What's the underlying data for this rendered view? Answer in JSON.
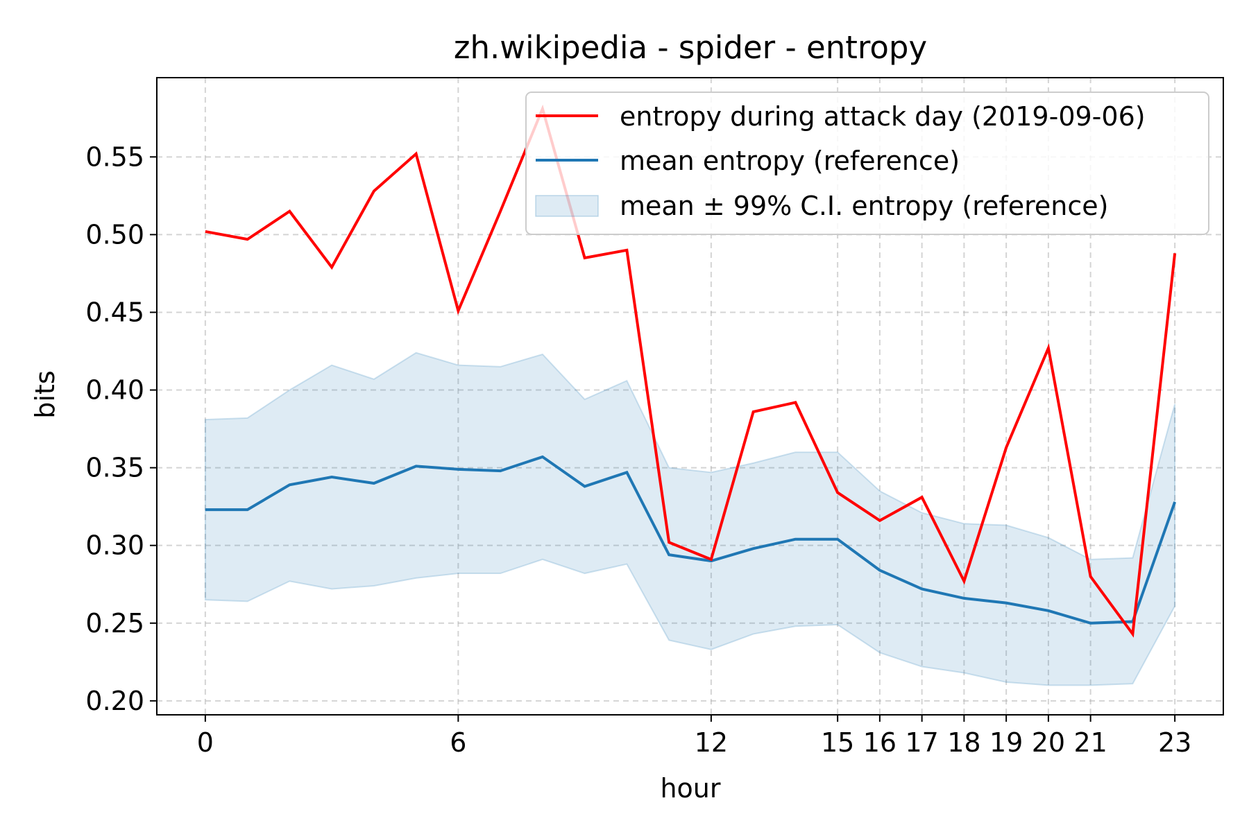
{
  "chart_data": {
    "type": "line",
    "title": "zh.wikipedia - spider - entropy",
    "xlabel": "hour",
    "ylabel": "bits",
    "xlim": [
      -1.15,
      24.15
    ],
    "ylim": [
      0.191,
      0.601
    ],
    "xticks": [
      0,
      6,
      12,
      15,
      16,
      17,
      18,
      19,
      20,
      21,
      23
    ],
    "yticks": [
      0.2,
      0.25,
      0.3,
      0.35,
      0.4,
      0.45,
      0.5,
      0.55
    ],
    "ytick_labels": [
      "0.20",
      "0.25",
      "0.30",
      "0.35",
      "0.40",
      "0.45",
      "0.50",
      "0.55"
    ],
    "grid": true,
    "legend_position": "upper right",
    "x": [
      0,
      1,
      2,
      3,
      4,
      5,
      6,
      7,
      8,
      9,
      10,
      11,
      12,
      13,
      14,
      15,
      16,
      17,
      18,
      19,
      20,
      21,
      22,
      23
    ],
    "series": [
      {
        "name": "entropy during attack day (2019-09-06)",
        "color": "#ff0000",
        "values": [
          0.502,
          0.497,
          0.515,
          0.479,
          0.528,
          0.552,
          0.451,
          0.515,
          0.581,
          0.485,
          0.49,
          0.302,
          0.291,
          0.386,
          0.392,
          0.334,
          0.316,
          0.331,
          0.277,
          0.363,
          0.427,
          0.28,
          0.243,
          0.488
        ]
      },
      {
        "name": "mean entropy (reference)",
        "color": "#1f77b4",
        "values": [
          0.323,
          0.323,
          0.339,
          0.344,
          0.34,
          0.351,
          0.349,
          0.348,
          0.357,
          0.338,
          0.347,
          0.294,
          0.29,
          0.298,
          0.304,
          0.304,
          0.284,
          0.272,
          0.266,
          0.263,
          0.258,
          0.25,
          0.251,
          0.328
        ]
      }
    ],
    "band": {
      "name": "mean ± 99% C.I. entropy (reference)",
      "color": "#1f77b4",
      "upper": [
        0.381,
        0.382,
        0.4,
        0.416,
        0.407,
        0.424,
        0.416,
        0.415,
        0.423,
        0.394,
        0.406,
        0.35,
        0.347,
        0.353,
        0.36,
        0.36,
        0.335,
        0.321,
        0.314,
        0.313,
        0.305,
        0.291,
        0.292,
        0.391
      ],
      "lower": [
        0.265,
        0.264,
        0.277,
        0.272,
        0.274,
        0.279,
        0.282,
        0.282,
        0.291,
        0.282,
        0.288,
        0.239,
        0.233,
        0.243,
        0.248,
        0.249,
        0.231,
        0.222,
        0.218,
        0.212,
        0.21,
        0.21,
        0.211,
        0.261
      ]
    }
  }
}
